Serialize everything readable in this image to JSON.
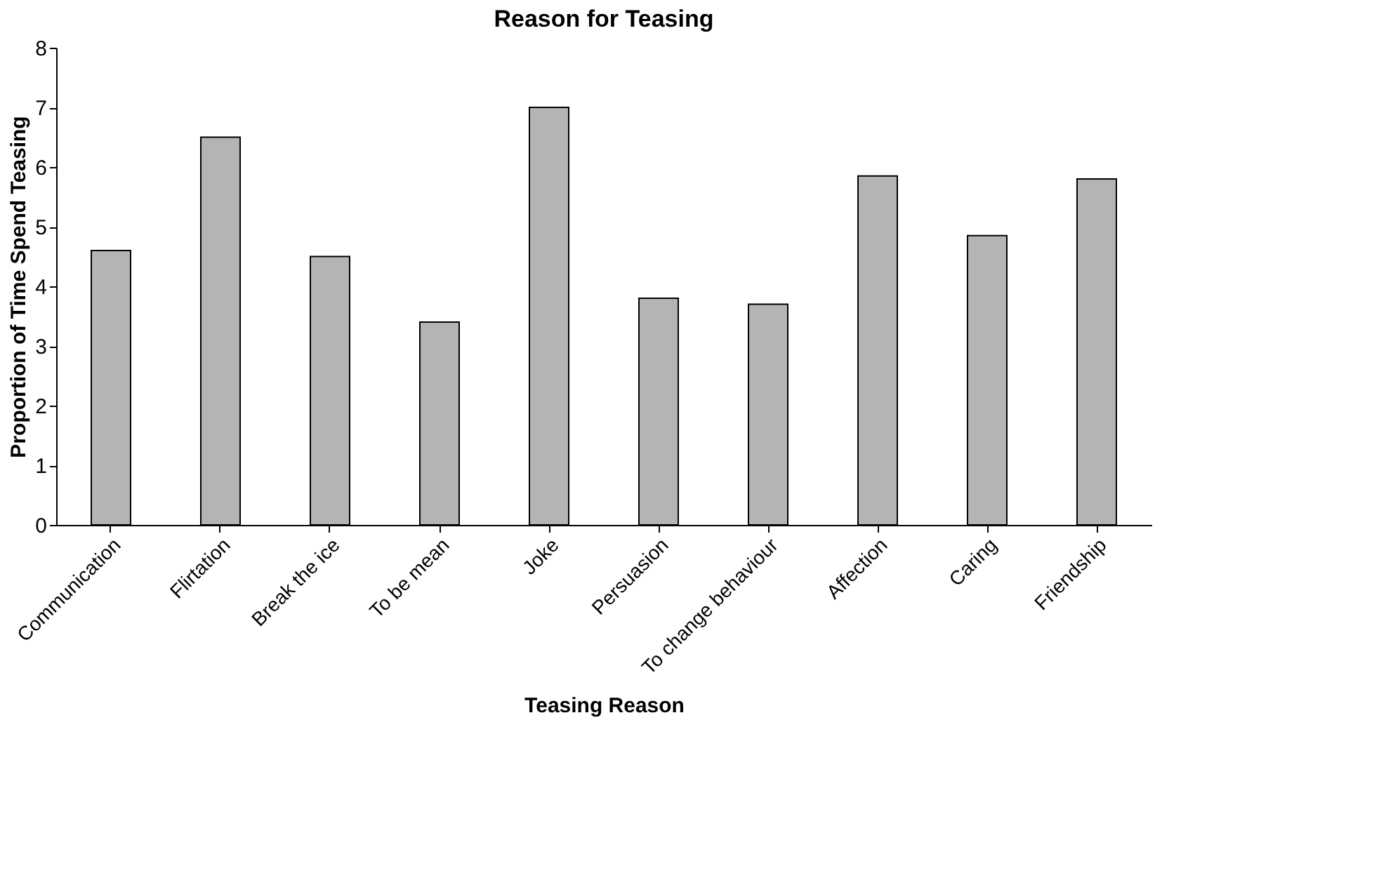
{
  "chart_data": {
    "type": "bar",
    "title": "Reason for Teasing",
    "xlabel": "Teasing Reason",
    "ylabel": "Proportion of Time Spend Teasing",
    "categories": [
      "Communication",
      "Flirtation",
      "Break the ice",
      "To be mean",
      "Joke",
      "Persuasion",
      "To change behaviour",
      "Affection",
      "Caring",
      "Friendship"
    ],
    "values": [
      4.6,
      6.5,
      4.5,
      3.4,
      7.0,
      3.8,
      3.7,
      5.85,
      4.85,
      5.8
    ],
    "color": "#b4b4b4",
    "ylim": [
      0,
      8
    ],
    "yticks": [
      0,
      1,
      2,
      3,
      4,
      5,
      6,
      7,
      8
    ],
    "grid": false
  }
}
